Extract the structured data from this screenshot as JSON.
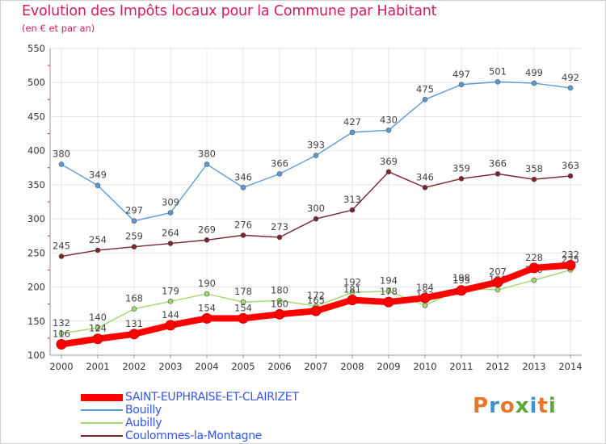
{
  "header": {
    "title": "Evolution des Impôts locaux pour la Commune par Habitant",
    "subtitle": "(en € et par an)"
  },
  "colors": {
    "title": "#d81b60",
    "grid": "#e5e5e5",
    "axis": "#999999",
    "legend_text": "#3355ee",
    "label_text": "#444444"
  },
  "chart_data": {
    "type": "line",
    "x": [
      "2000",
      "2001",
      "2002",
      "2003",
      "2004",
      "2005",
      "2006",
      "2007",
      "2008",
      "2009",
      "2010",
      "2011",
      "2012",
      "2013",
      "2014"
    ],
    "ylim": [
      100,
      550
    ],
    "yticks": [
      100,
      150,
      200,
      250,
      300,
      350,
      400,
      450,
      500,
      550
    ],
    "grid": true,
    "legend_position": "bottom-left",
    "series": [
      {
        "name": "Bouilly",
        "color": "#5b9bd5",
        "values": [
          380,
          349,
          297,
          309,
          380,
          346,
          366,
          393,
          427,
          430,
          475,
          497,
          501,
          499,
          492
        ],
        "labels": [
          "380",
          "349",
          "297",
          "309",
          "380",
          "346",
          "366",
          "393",
          "427",
          "430",
          "475",
          "497",
          "501",
          "499",
          "492"
        ]
      },
      {
        "name": "Coulommes-la-Montagne",
        "color": "#7b2431",
        "values": [
          245,
          254,
          259,
          264,
          269,
          276,
          273,
          300,
          313,
          369,
          346,
          359,
          366,
          358,
          363
        ],
        "labels": [
          "245",
          "254",
          "259",
          "264",
          "269",
          "276",
          "273",
          "300",
          "313",
          "369",
          "346",
          "359",
          "366",
          "358",
          "363"
        ]
      },
      {
        "name": "Aubilly",
        "color": "#9fd96b",
        "values": [
          132,
          140,
          168,
          179,
          190,
          178,
          180,
          172,
          192,
          194,
          173,
          198,
          196,
          210,
          225
        ],
        "labels": [
          "132",
          "140",
          "168",
          "179",
          "190",
          "178",
          "180",
          "172",
          "192",
          "194",
          "173",
          "198",
          "196",
          "210",
          "225"
        ]
      },
      {
        "name": "SAINT-EUPHRAISE-ET-CLAIRIZET",
        "color": "#ff0000",
        "values": [
          116,
          124,
          131,
          144,
          154,
          154,
          160,
          165,
          181,
          178,
          184,
          195,
          207,
          228,
          232
        ],
        "labels": [
          "116",
          "124",
          "131",
          "144",
          "154",
          "154",
          "160",
          "165",
          "181",
          "178",
          "184",
          "195",
          "207",
          "228",
          "232"
        ]
      }
    ]
  },
  "legend": {
    "items": [
      {
        "label": "SAINT-EUPHRAISE-ET-CLAIRIZET",
        "color": "#ff0000",
        "thickness": 9
      },
      {
        "label": "Bouilly",
        "color": "#5b9bd5",
        "thickness": 2
      },
      {
        "label": "Aubilly",
        "color": "#9fd96b",
        "thickness": 2
      },
      {
        "label": "Coulommes-la-Montagne",
        "color": "#7b2431",
        "thickness": 2
      }
    ]
  },
  "logo": {
    "letters": [
      "P",
      "r",
      "o",
      "x",
      "i",
      "t",
      "i"
    ]
  }
}
